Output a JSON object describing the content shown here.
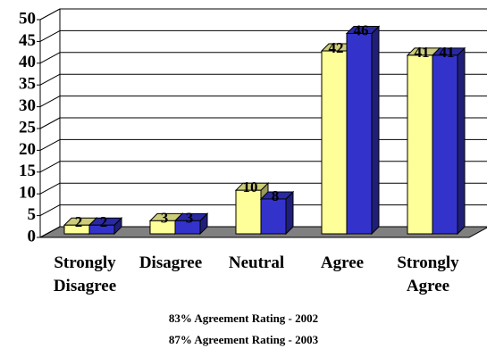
{
  "chart_data": {
    "type": "bar3d",
    "categories": [
      "Strongly Disagree",
      "Disagree",
      "Neutral",
      "Agree",
      "Strongly Agree"
    ],
    "series": [
      {
        "color": "#ffff99",
        "values": [
          2,
          3,
          10,
          42,
          41
        ]
      },
      {
        "color": "#3333cc",
        "values": [
          2,
          3,
          8,
          46,
          41
        ]
      }
    ],
    "ylim": [
      0,
      50
    ],
    "yticks": [
      0,
      5,
      10,
      15,
      20,
      25,
      30,
      35,
      40,
      45,
      50
    ],
    "grid": true,
    "floor_color": "#808080",
    "notes": [
      "83% Agreement Rating - 2002",
      "87% Agreement Rating - 2003"
    ]
  }
}
